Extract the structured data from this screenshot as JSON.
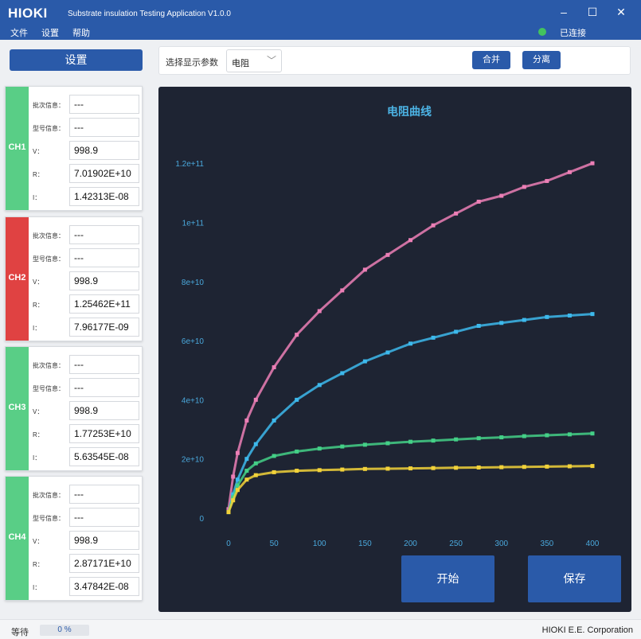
{
  "app": {
    "logo": "HIOKI",
    "title": "Substrate insulation Testing Application V1.0.0"
  },
  "window": {
    "minimize": "–",
    "maximize": "☐",
    "close": "✕"
  },
  "menu": [
    "文件",
    "设置",
    "帮助"
  ],
  "connection": {
    "status": "已连接",
    "color": "#43c35e"
  },
  "sidebar": {
    "settings_label": "设置"
  },
  "toolbar": {
    "label": "选择显示参数",
    "select_value": "电阻",
    "merge_label": "合并",
    "split_label": "分离"
  },
  "field_labels": {
    "batch": "批次信息：",
    "model": "型号信息：",
    "v": "V：",
    "r": "R：",
    "i": "I："
  },
  "channels": [
    {
      "name": "CH1",
      "color": "#59ce86",
      "batch": "---",
      "model": "---",
      "v": "998.9",
      "r": "7.01902E+10",
      "i": "1.42313E-08"
    },
    {
      "name": "CH2",
      "color": "#e04242",
      "batch": "---",
      "model": "---",
      "v": "998.9",
      "r": "1.25462E+11",
      "i": "7.96177E-09"
    },
    {
      "name": "CH3",
      "color": "#59ce86",
      "batch": "---",
      "model": "---",
      "v": "998.9",
      "r": "1.77253E+10",
      "i": "5.63545E-08"
    },
    {
      "name": "CH4",
      "color": "#59ce86",
      "batch": "---",
      "model": "---",
      "v": "998.9",
      "r": "2.87171E+10",
      "i": "3.47842E-08"
    }
  ],
  "chart_data": {
    "type": "scatter",
    "title": "电阻曲线",
    "xlabel": "",
    "ylabel": "",
    "xlim": [
      0,
      400
    ],
    "ylim": [
      0,
      130000000000
    ],
    "x_ticks": [
      0,
      50,
      100,
      150,
      200,
      250,
      300,
      350,
      400
    ],
    "y_ticks": [
      {
        "value": 0,
        "label": "0"
      },
      {
        "value": 20000000000,
        "label": "2e+10"
      },
      {
        "value": 40000000000,
        "label": "4e+10"
      },
      {
        "value": 60000000000,
        "label": "6e+10"
      },
      {
        "value": 80000000000,
        "label": "8e+10"
      },
      {
        "value": 100000000000,
        "label": "1e+11"
      },
      {
        "value": 120000000000,
        "label": "1.2e+11"
      }
    ],
    "grid": false,
    "series": [
      {
        "color": "#ec7fb6",
        "x": [
          0,
          5,
          10,
          20,
          30,
          50,
          75,
          100,
          125,
          150,
          175,
          200,
          225,
          250,
          275,
          300,
          325,
          350,
          375,
          400
        ],
        "values": [
          3000000000,
          14000000000,
          22000000000,
          33000000000,
          40000000000,
          51000000000,
          62000000000,
          70000000000,
          77000000000,
          84000000000,
          89000000000,
          94000000000,
          99000000000,
          103000000000,
          107000000000,
          109000000000,
          112000000000,
          114000000000,
          117000000000,
          120000000000
        ]
      },
      {
        "color": "#3db9ec",
        "x": [
          0,
          5,
          10,
          20,
          30,
          50,
          75,
          100,
          125,
          150,
          175,
          200,
          225,
          250,
          275,
          300,
          325,
          350,
          375,
          400
        ],
        "values": [
          2000000000,
          8000000000,
          13000000000,
          20000000000,
          25000000000,
          33000000000,
          40000000000,
          45000000000,
          49000000000,
          53000000000,
          56000000000,
          59000000000,
          61000000000,
          63000000000,
          65000000000,
          66000000000,
          67000000000,
          68000000000,
          68500000000,
          69000000000
        ]
      },
      {
        "color": "#44d087",
        "x": [
          0,
          5,
          10,
          20,
          30,
          50,
          75,
          100,
          125,
          150,
          175,
          200,
          225,
          250,
          275,
          300,
          325,
          350,
          375,
          400
        ],
        "values": [
          2000000000,
          7000000000,
          11000000000,
          16000000000,
          18500000000,
          21000000000,
          22500000000,
          23500000000,
          24200000000,
          24800000000,
          25300000000,
          25800000000,
          26200000000,
          26600000000,
          27000000000,
          27300000000,
          27700000000,
          28000000000,
          28300000000,
          28600000000
        ]
      },
      {
        "color": "#f2d23a",
        "x": [
          0,
          5,
          10,
          20,
          30,
          50,
          75,
          100,
          125,
          150,
          175,
          200,
          225,
          250,
          275,
          300,
          325,
          350,
          375,
          400
        ],
        "values": [
          2000000000,
          6000000000,
          9500000000,
          13000000000,
          14500000000,
          15500000000,
          16000000000,
          16200000000,
          16400000000,
          16600000000,
          16700000000,
          16800000000,
          16900000000,
          17000000000,
          17100000000,
          17200000000,
          17300000000,
          17400000000,
          17500000000,
          17600000000
        ]
      }
    ]
  },
  "actions": {
    "start_label": "开始",
    "save_label": "保存"
  },
  "status": {
    "state": "等待",
    "progress_text": "0 %",
    "progress": 0,
    "company": "HIOKI E.E. Corporation"
  }
}
